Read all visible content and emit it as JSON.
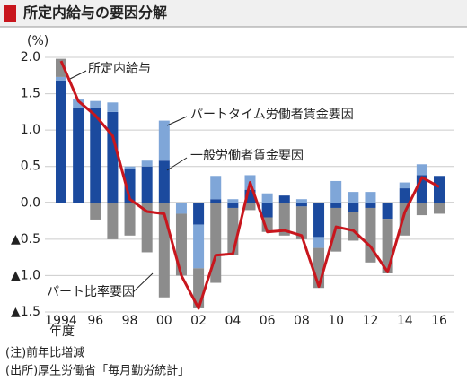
{
  "chart_data": {
    "type": "bar",
    "title": "所定内給与の要因分解",
    "y_unit": "(%)",
    "x_unit": "年度",
    "categories": [
      "1994",
      null,
      "96",
      null,
      "98",
      null,
      "00",
      null,
      "02",
      null,
      "04",
      null,
      "06",
      null,
      "08",
      null,
      "10",
      null,
      "12",
      null,
      "14",
      null,
      "16"
    ],
    "series": [
      {
        "name": "一般労働者賃金要因",
        "color": "#1b4a9e",
        "values": [
          1.68,
          1.3,
          1.3,
          1.25,
          0.47,
          0.5,
          0.58,
          0,
          -0.3,
          0.05,
          -0.07,
          0.18,
          -0.2,
          0.1,
          -0.05,
          -0.47,
          -0.07,
          -0.12,
          -0.07,
          -0.22,
          0.2,
          0.38,
          0.37
        ]
      },
      {
        "name": "パートタイム労働者賃金要因",
        "color": "#7fa6d8",
        "values": [
          0.05,
          0.12,
          0.1,
          0.13,
          0.03,
          0.08,
          0.55,
          -0.15,
          -0.6,
          0.32,
          0.05,
          0.2,
          0.13,
          0,
          0.05,
          -0.15,
          0.3,
          0.15,
          0.15,
          0,
          0.08,
          0.15,
          0
        ]
      },
      {
        "name": "パート比率要因",
        "color": "#8c8c8c",
        "values": [
          0.25,
          0,
          -0.23,
          -0.5,
          -0.45,
          -0.68,
          -1.3,
          -0.85,
          -0.55,
          -1.1,
          -0.65,
          -0.1,
          -0.2,
          -0.45,
          -0.45,
          -0.55,
          -0.6,
          -0.4,
          -0.75,
          -0.75,
          -0.45,
          -0.17,
          -0.15
        ]
      },
      {
        "name": "所定内給与",
        "type": "line",
        "color": "#c8161d",
        "values": [
          1.95,
          1.4,
          1.2,
          0.92,
          0.05,
          -0.12,
          -0.15,
          -1.0,
          -1.45,
          -0.72,
          -0.7,
          0.28,
          -0.4,
          -0.38,
          -0.45,
          -1.15,
          -0.33,
          -0.38,
          -0.6,
          -0.95,
          -0.13,
          0.35,
          0.22
        ]
      }
    ],
    "ylim": [
      -1.5,
      2.0
    ],
    "yticks": [
      {
        "value": 2.0,
        "label": "2.0"
      },
      {
        "value": 1.5,
        "label": "1.5"
      },
      {
        "value": 1.0,
        "label": "1.0"
      },
      {
        "value": 0.5,
        "label": "0.5"
      },
      {
        "value": 0.0,
        "label": "0.0"
      },
      {
        "value": -0.5,
        "label": "▲0.5"
      },
      {
        "value": -1.0,
        "label": "▲1.0"
      },
      {
        "value": -1.5,
        "label": "▲1.5"
      }
    ],
    "grid": true,
    "notes": [
      "(注)前年比増減",
      "(出所)厚生労働省「毎月勤労統計」"
    ]
  }
}
